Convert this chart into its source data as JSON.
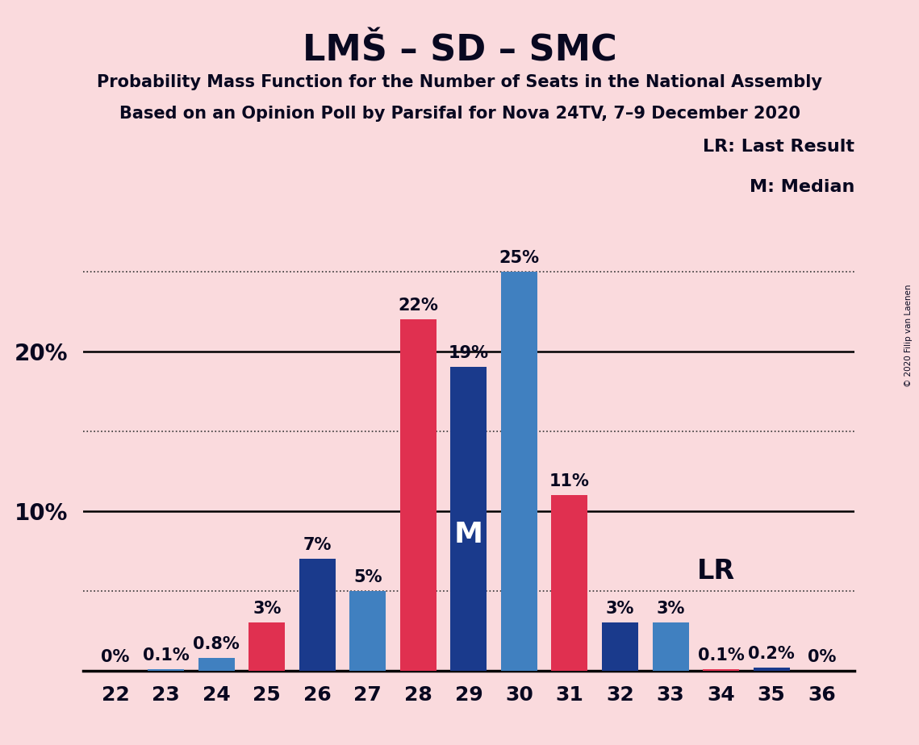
{
  "title": "LMŠ – SD – SMC",
  "subtitle1": "Probability Mass Function for the Number of Seats in the National Assembly",
  "subtitle2": "Based on an Opinion Poll by Parsifal for Nova 24TV, 7–9 December 2020",
  "copyright": "© 2020 Filip van Laenen",
  "seats": [
    22,
    23,
    24,
    25,
    26,
    27,
    28,
    29,
    30,
    31,
    32,
    33,
    34,
    35,
    36
  ],
  "bar_colors_per_seat": {
    "22": [
      "red",
      0.0
    ],
    "23": [
      "blue_light",
      0.1
    ],
    "24": [
      "blue_light",
      0.8
    ],
    "25": [
      "red",
      3.0
    ],
    "26": [
      "blue_dark",
      7.0
    ],
    "27": [
      "blue_light",
      5.0
    ],
    "28": [
      "red",
      22.0
    ],
    "29": [
      "blue_dark",
      19.0
    ],
    "30": [
      "blue_light",
      25.0
    ],
    "31": [
      "red",
      11.0
    ],
    "32": [
      "blue_dark",
      3.0
    ],
    "33": [
      "blue_light",
      3.0
    ],
    "34": [
      "red",
      0.1
    ],
    "35": [
      "blue_dark",
      0.2
    ],
    "36": [
      "blue_light",
      0.0
    ]
  },
  "color_map": {
    "red": "#E03050",
    "blue_dark": "#1A3A8C",
    "blue_light": "#4080C0"
  },
  "label_map": {
    "0.0": "0%",
    "0.1": "0.1%",
    "0.2": "0.2%",
    "0.8": "0.8%",
    "3.0": "3%",
    "5.0": "5%",
    "7.0": "7%",
    "11.0": "11%",
    "19.0": "19%",
    "22.0": "22%",
    "25.0": "25%"
  },
  "median_seat": 29,
  "lr_seat": 33,
  "background_color": "#FADADD",
  "text_color": "#080820",
  "legend_lr": "LR: Last Result",
  "legend_m": "M: Median",
  "dotted_lines": [
    5.0,
    15.0,
    25.0
  ],
  "solid_lines": [
    10.0,
    20.0
  ],
  "ylim": [
    0,
    28
  ],
  "bar_width": 0.72
}
